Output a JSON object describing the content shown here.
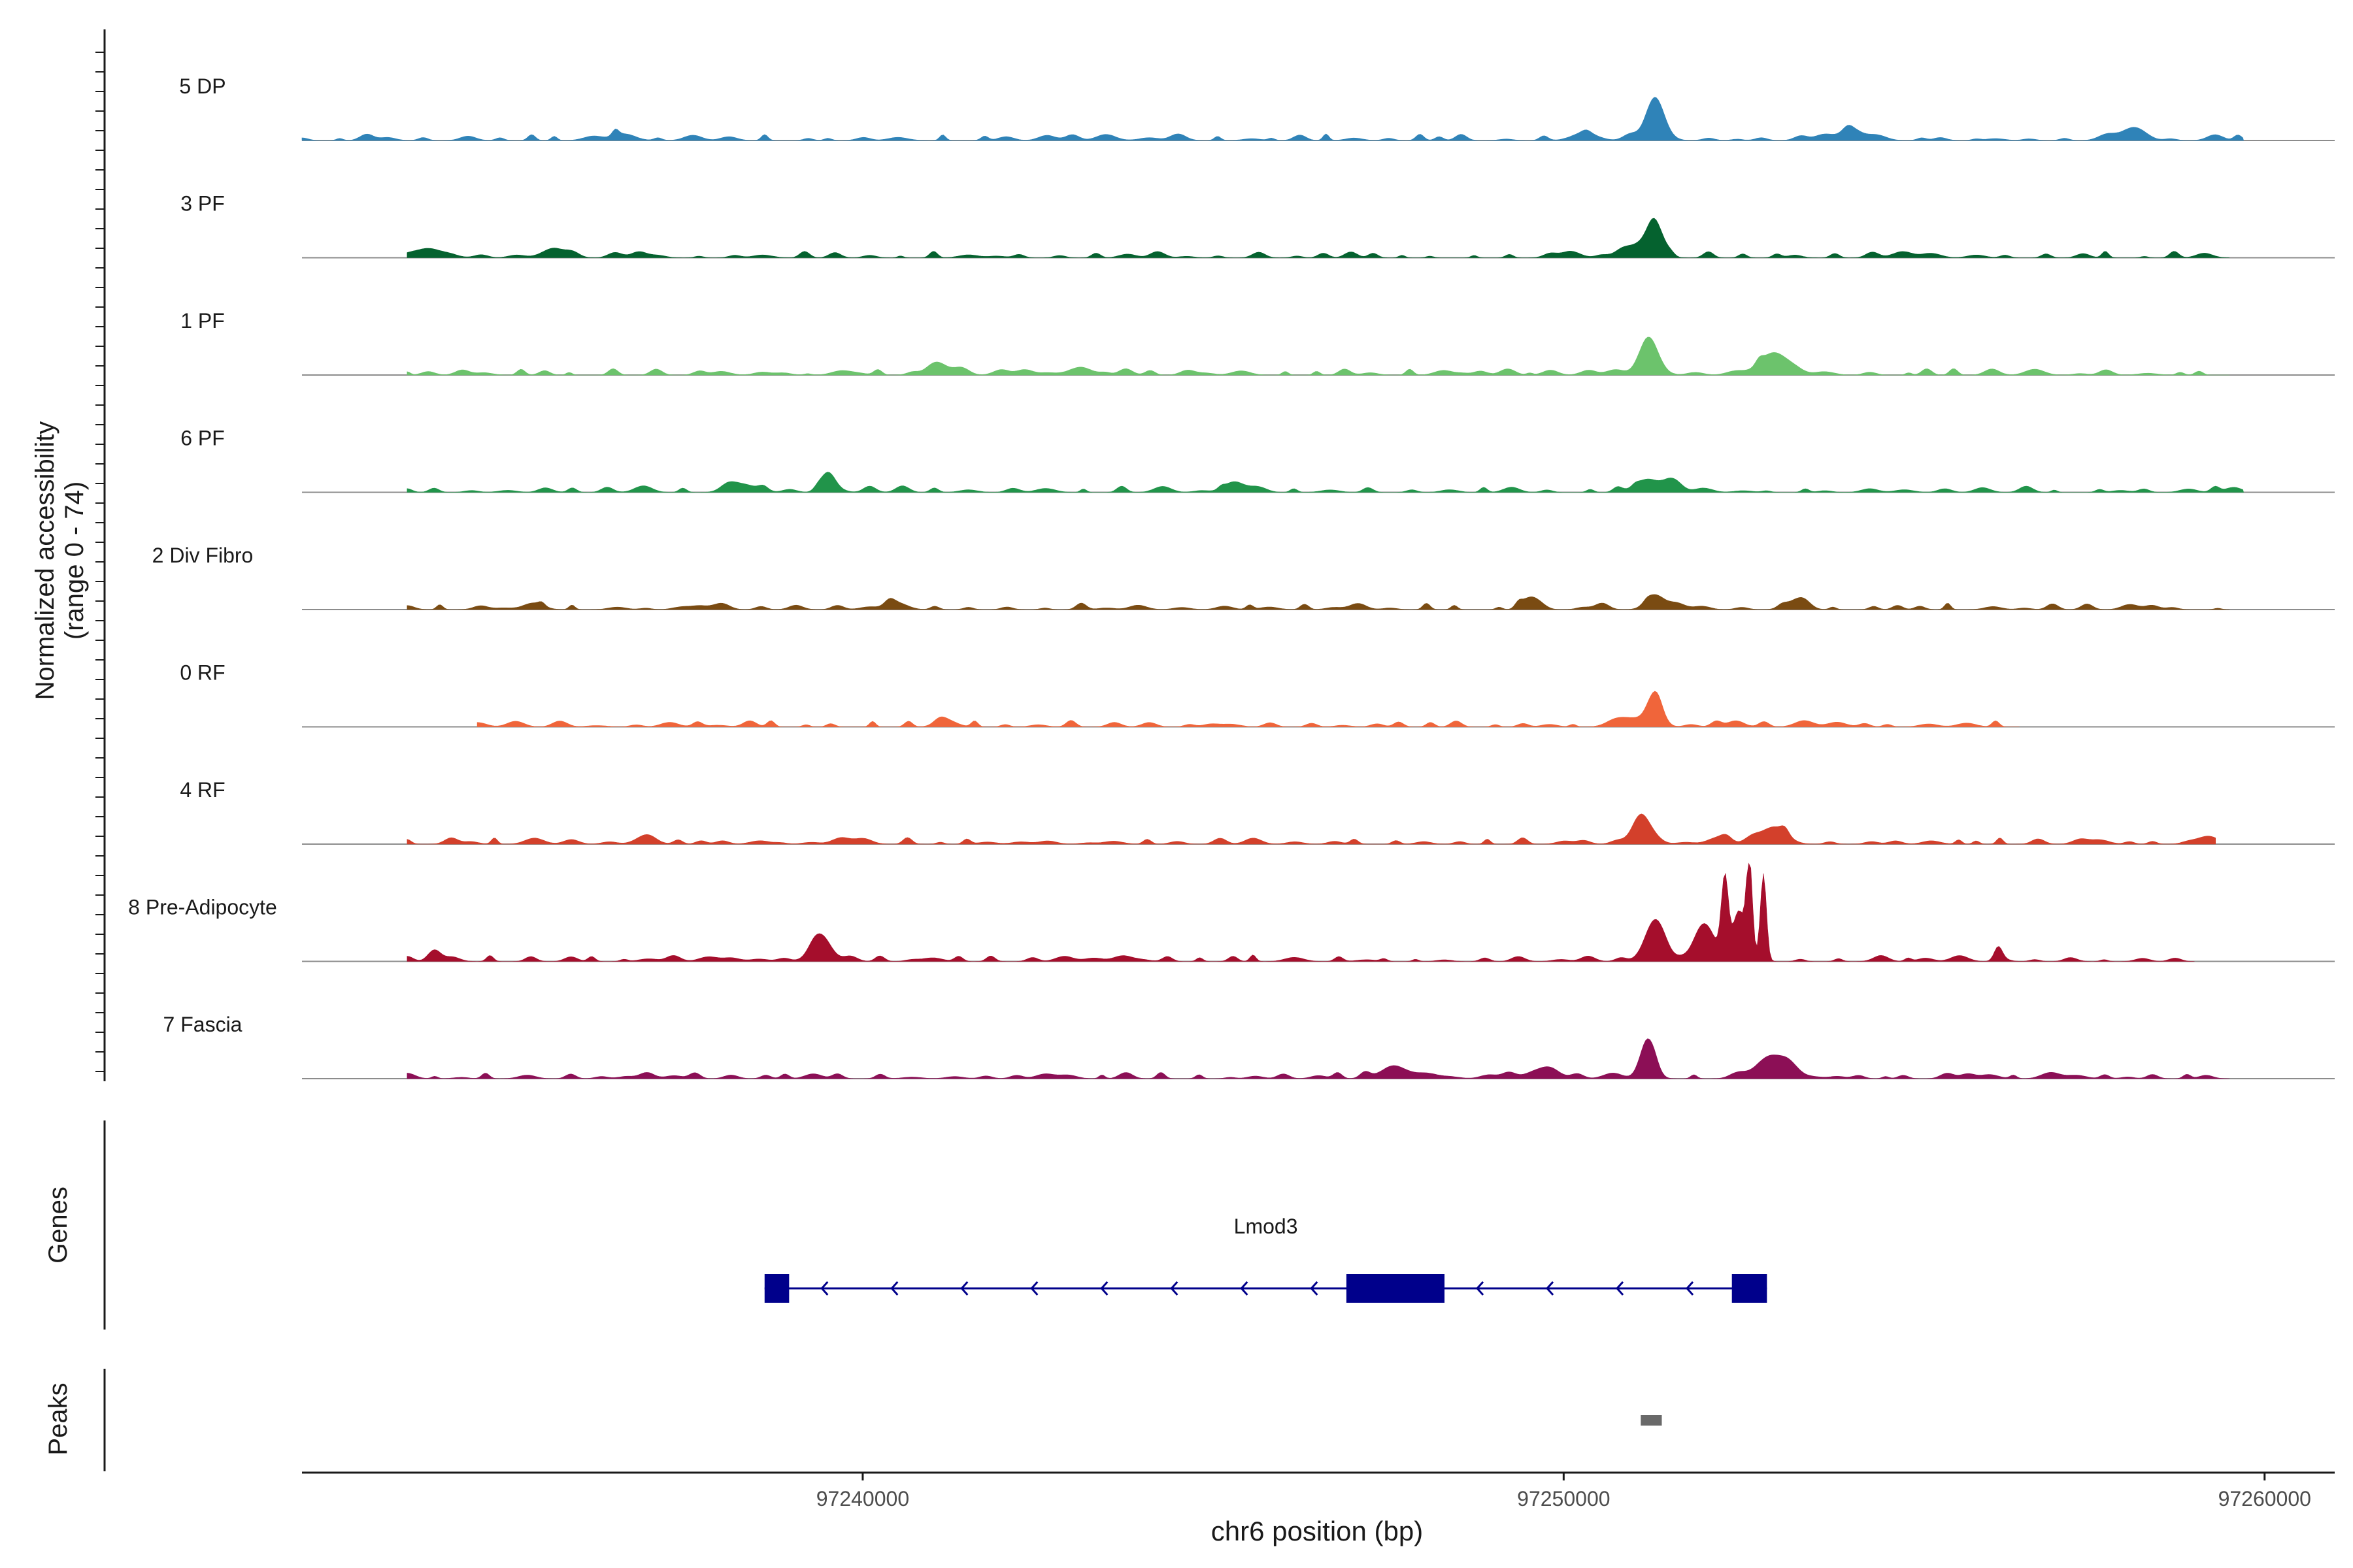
{
  "chart_data": {
    "type": "area",
    "subtype": "genome-coverage-tracks",
    "ylabel_line1": "Normalized accessibility",
    "ylabel_line2": "(range 0 - 74)",
    "y_range": [
      0,
      74
    ],
    "xlabel": "chr6 position (bp)",
    "xlim": [
      97232000,
      97261000
    ],
    "xticks": [
      97240000,
      97250000,
      97260000
    ],
    "xtick_labels": [
      "97240000",
      "97250000",
      "97260000"
    ],
    "grid": false,
    "tracks": [
      {
        "name": "5 DP",
        "color": "#2f83b8",
        "data_start": 97232000,
        "data_end": 97259700,
        "peaks": [
          [
            97251300,
            32,
            180
          ],
          [
            97254100,
            9,
            200
          ],
          [
            97258100,
            8,
            220
          ],
          [
            97250300,
            6,
            250
          ],
          [
            97236600,
            5,
            220
          ]
        ]
      },
      {
        "name": "3 PF",
        "color": "#05622f",
        "data_start": 97233500,
        "data_end": 97259500,
        "peaks": [
          [
            97251300,
            26,
            170
          ],
          [
            97251000,
            9,
            250
          ],
          [
            97233800,
            7,
            250
          ],
          [
            97235600,
            6,
            250
          ]
        ]
      },
      {
        "name": "1 PF",
        "color": "#6cc36c",
        "data_start": 97233500,
        "data_end": 97259500,
        "peaks": [
          [
            97251200,
            25,
            180
          ],
          [
            97253000,
            17,
            280
          ],
          [
            97241100,
            6,
            250
          ],
          [
            97243100,
            5,
            250
          ]
        ]
      },
      {
        "name": "6 PF",
        "color": "#21944a",
        "data_start": 97233500,
        "data_end": 97259700,
        "peaks": [
          [
            97239500,
            14,
            140
          ],
          [
            97238300,
            6,
            250
          ],
          [
            97245300,
            8,
            200
          ],
          [
            97251200,
            10,
            250
          ],
          [
            97251600,
            7,
            150
          ]
        ]
      },
      {
        "name": "2 Div Fibro",
        "color": "#7a4b12",
        "data_start": 97233500,
        "data_end": 97259500,
        "peaks": [
          [
            97251300,
            11,
            180
          ],
          [
            97249500,
            8,
            150
          ],
          [
            97253300,
            6,
            200
          ],
          [
            97235300,
            5,
            200
          ],
          [
            97240500,
            5,
            200
          ]
        ]
      },
      {
        "name": "0 RF",
        "color": "#f0653a",
        "data_start": 97234500,
        "data_end": 97256500,
        "peaks": [
          [
            97251300,
            24,
            150
          ],
          [
            97241200,
            5,
            200
          ],
          [
            97251000,
            6,
            250
          ]
        ]
      },
      {
        "name": "4 RF",
        "color": "#d3402b",
        "data_start": 97233500,
        "data_end": 97259300,
        "peaks": [
          [
            97251100,
            22,
            170
          ],
          [
            97253000,
            13,
            250
          ],
          [
            97236900,
            6,
            200
          ],
          [
            97252200,
            5,
            200
          ],
          [
            97259200,
            6,
            200
          ]
        ]
      },
      {
        "name": "8 Pre-Adipocyte",
        "color": "#a50e2c",
        "data_start": 97233500,
        "data_end": 97259000,
        "peaks": [
          [
            97252300,
            60,
            70
          ],
          [
            97252650,
            72,
            60
          ],
          [
            97252850,
            65,
            60
          ],
          [
            97251300,
            30,
            200
          ],
          [
            97252000,
            28,
            200
          ],
          [
            97252500,
            38,
            120
          ],
          [
            97239400,
            20,
            200
          ],
          [
            97256200,
            10,
            80
          ],
          [
            97233900,
            8,
            120
          ]
        ]
      },
      {
        "name": "7 Fascia",
        "color": "#8c0f56",
        "data_start": 97233500,
        "data_end": 97259500,
        "peaks": [
          [
            97251200,
            30,
            150
          ],
          [
            97252900,
            14,
            250
          ],
          [
            97253200,
            12,
            200
          ],
          [
            97249800,
            8,
            200
          ],
          [
            97247600,
            8,
            300
          ]
        ]
      }
    ],
    "genes_label": "Genes",
    "genes": [
      {
        "name": "Lmod3",
        "strand": "-",
        "start": 97238600,
        "end": 97252900,
        "exons": [
          [
            97238600,
            97238950
          ],
          [
            97246900,
            97248300
          ],
          [
            97252400,
            97252900
          ]
        ]
      }
    ],
    "peaks_label": "Peaks",
    "peak_regions": [
      [
        97251100,
        97251400
      ]
    ]
  }
}
